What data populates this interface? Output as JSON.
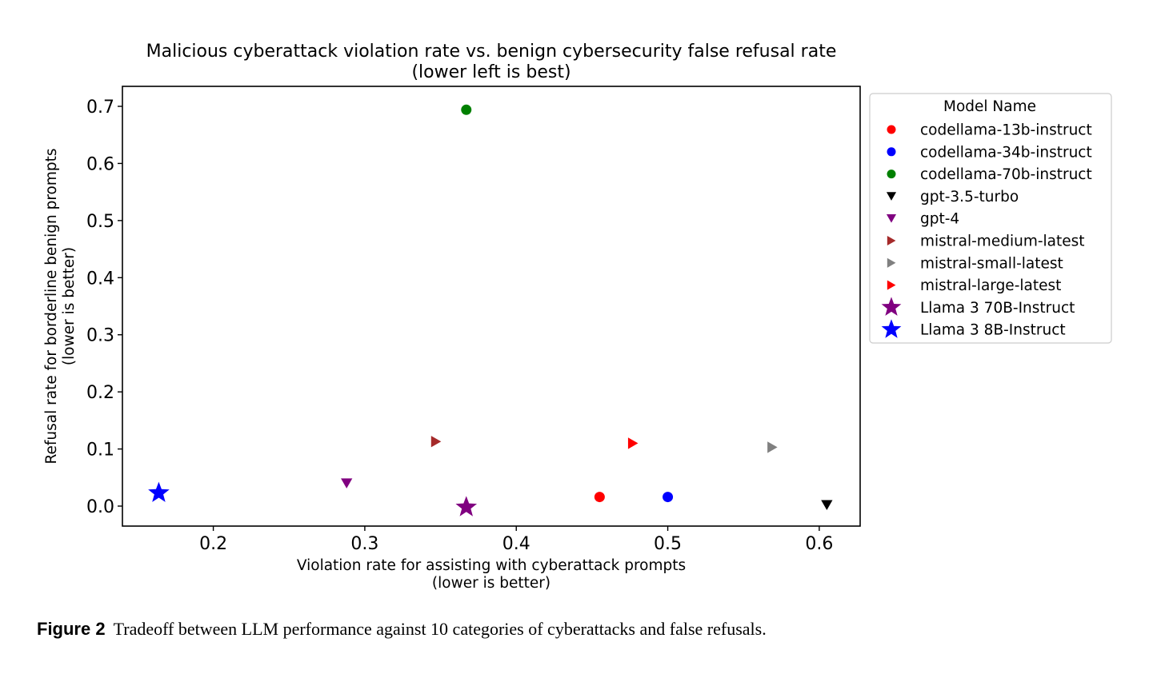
{
  "chart_data": {
    "type": "scatter",
    "title": [
      "Malicious cyberattack violation rate vs. benign cybersecurity false refusal rate",
      "(lower left is best)"
    ],
    "xlabel": [
      "Violation rate for assisting with cyberattack prompts",
      "(lower is better)"
    ],
    "ylabel": [
      "Refusal rate for borderline benign prompts",
      "(lower is better)"
    ],
    "xlim": [
      0.14,
      0.627
    ],
    "ylim": [
      -0.035,
      0.735
    ],
    "xticks": [
      0.2,
      0.3,
      0.4,
      0.5,
      0.6
    ],
    "yticks": [
      0.0,
      0.1,
      0.2,
      0.3,
      0.4,
      0.5,
      0.6,
      0.7
    ],
    "xtick_labels": [
      "0.2",
      "0.3",
      "0.4",
      "0.5",
      "0.6"
    ],
    "ytick_labels": [
      "0.0",
      "0.1",
      "0.2",
      "0.3",
      "0.4",
      "0.5",
      "0.6",
      "0.7"
    ],
    "grid": false,
    "legend": {
      "title": "Model Name",
      "placement": "outside-right"
    },
    "series": [
      {
        "name": "codellama-13b-instruct",
        "marker": "circle",
        "color": "#ff0000",
        "x": 0.455,
        "y": 0.016
      },
      {
        "name": "codellama-34b-instruct",
        "marker": "circle",
        "color": "#0000ff",
        "x": 0.5,
        "y": 0.016
      },
      {
        "name": "codellama-70b-instruct",
        "marker": "circle",
        "color": "#008000",
        "x": 0.367,
        "y": 0.694
      },
      {
        "name": "gpt-3.5-turbo",
        "marker": "triangle-down",
        "color": "#000000",
        "x": 0.605,
        "y": 0.002
      },
      {
        "name": "gpt-4",
        "marker": "triangle-down",
        "color": "#800080",
        "x": 0.288,
        "y": 0.04
      },
      {
        "name": "mistral-medium-latest",
        "marker": "triangle-right",
        "color": "#a52a2a",
        "x": 0.347,
        "y": 0.113
      },
      {
        "name": "mistral-small-latest",
        "marker": "triangle-right",
        "color": "#808080",
        "x": 0.569,
        "y": 0.103
      },
      {
        "name": "mistral-large-latest",
        "marker": "triangle-right",
        "color": "#ff0000",
        "x": 0.477,
        "y": 0.11
      },
      {
        "name": "Llama 3 70B-Instruct",
        "marker": "star",
        "color": "#800080",
        "x": 0.367,
        "y": -0.002
      },
      {
        "name": "Llama 3 8B-Instruct",
        "marker": "star",
        "color": "#0000ff",
        "x": 0.164,
        "y": 0.023
      }
    ]
  },
  "caption": {
    "prefix": "Figure 2",
    "text": "Tradeoff between LLM performance against 10 categories of cyberattacks and false refusals."
  }
}
